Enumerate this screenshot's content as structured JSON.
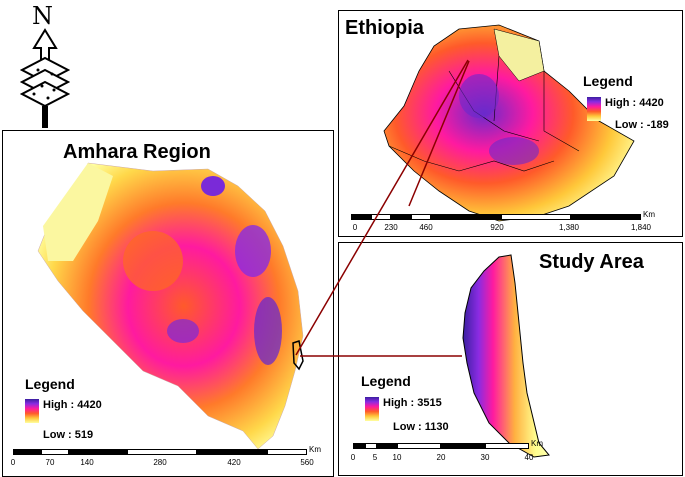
{
  "north_arrow": {
    "letter": "N"
  },
  "amhara": {
    "title": "Amhara Region",
    "legend": {
      "title": "Legend",
      "high": "High : 4420",
      "low": "Low : 519"
    },
    "scale": {
      "unit": "Km",
      "ticks": [
        "0",
        "70",
        "140",
        "280",
        "420",
        "560"
      ]
    }
  },
  "ethiopia": {
    "title": "Ethiopia",
    "legend": {
      "title": "Legend",
      "high": "High : 4420",
      "low": "Low : -189"
    },
    "scale": {
      "unit": "Km",
      "ticks": [
        "0",
        "230",
        "460",
        "920",
        "1,380",
        "1,840"
      ]
    }
  },
  "study": {
    "title": "Study Area",
    "legend": {
      "title": "Legend",
      "high": "High : 3515",
      "low": "Low : 1130"
    },
    "scale": {
      "unit": "Km",
      "ticks": [
        "0",
        "5",
        "10",
        "20",
        "30",
        "40"
      ]
    }
  },
  "colors": {
    "high": "#3a1fa0",
    "upper": "#8a2be2",
    "mid": "#ff1aa0",
    "orange": "#ff5a2a",
    "yellow": "#ffc83a",
    "low": "#ffffa0",
    "connector": "#8b0000"
  }
}
